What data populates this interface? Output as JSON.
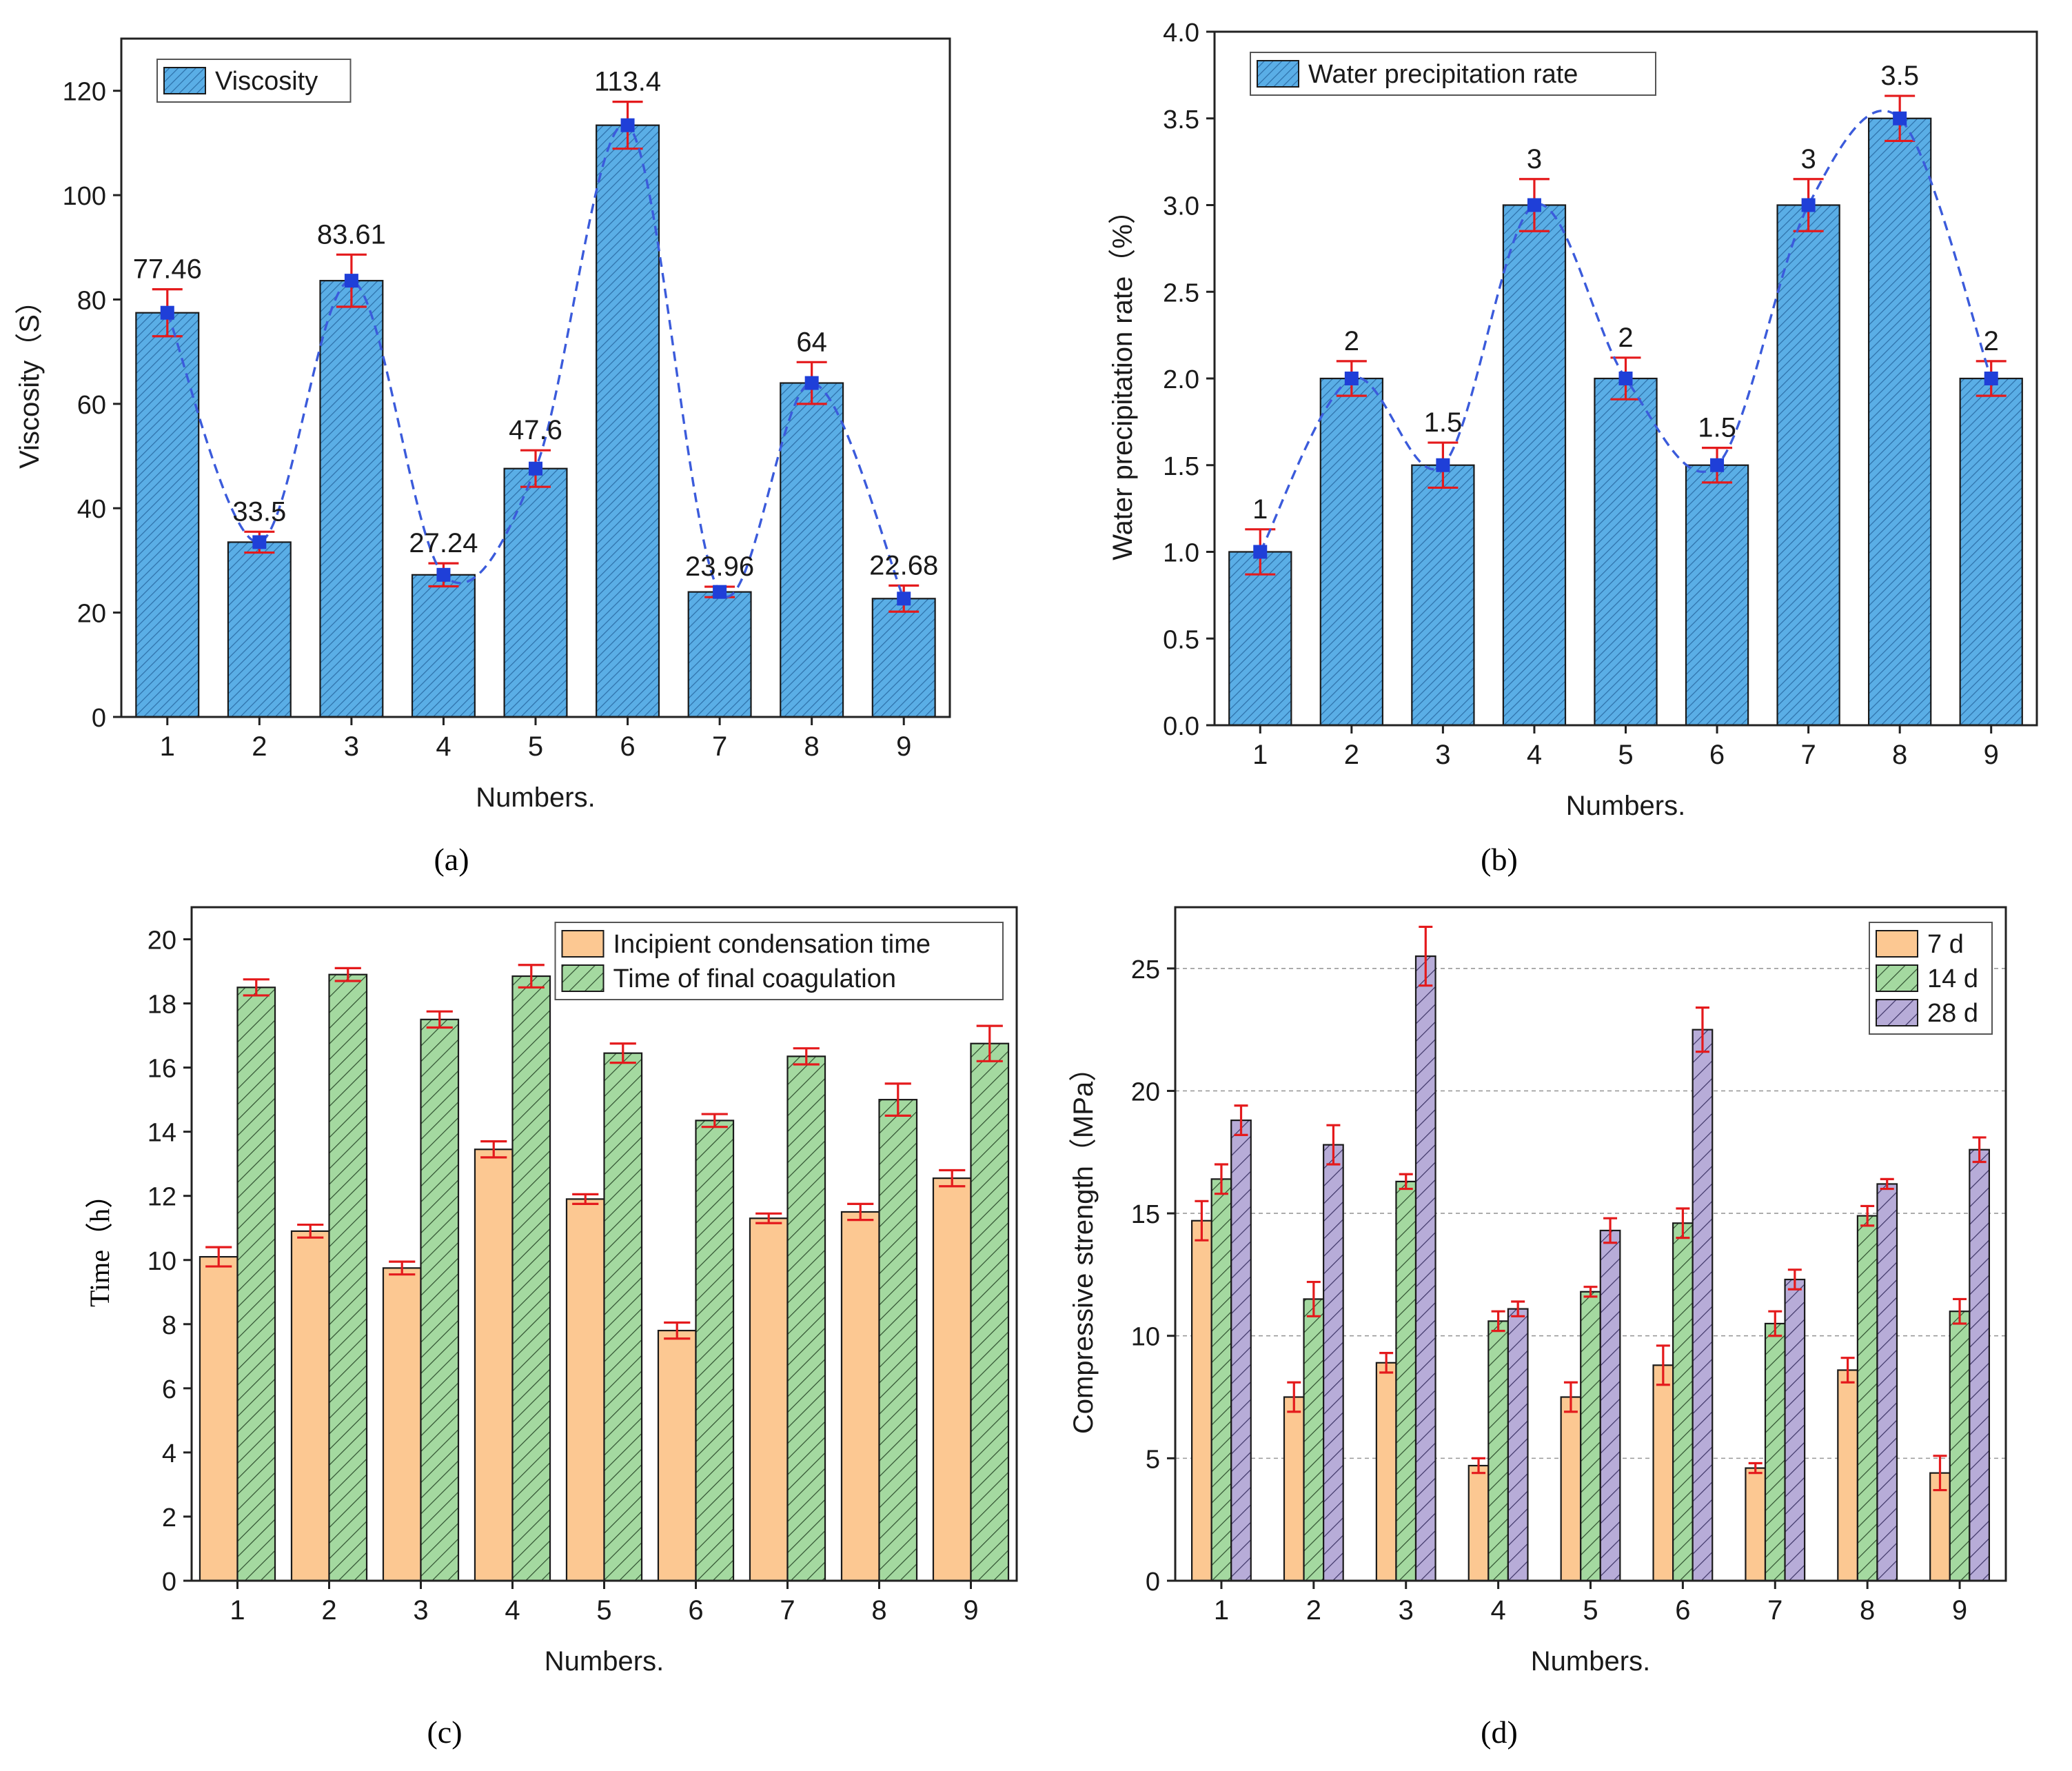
{
  "colors": {
    "blue_bar": "#5aaee6",
    "blue_hatch": "#2d6fa8",
    "orange_bar": "#fcc892",
    "green_bar": "#a4d9a0",
    "purple_bar": "#b7acd8",
    "error_red": "#e41a1c",
    "trend_blue": "#3b5bdb",
    "axis": "#222222"
  },
  "captions": [
    "(a)",
    "(b)",
    "(c)",
    "(d)"
  ],
  "chart_data": [
    {
      "id": "a",
      "type": "bar",
      "categories": [
        "1",
        "2",
        "3",
        "4",
        "5",
        "6",
        "7",
        "8",
        "9"
      ],
      "series": [
        {
          "name": "Viscosity",
          "values": [
            77.46,
            33.5,
            83.61,
            27.24,
            47.6,
            113.4,
            23.96,
            64,
            22.68
          ],
          "errors": [
            4.5,
            2.0,
            5.0,
            2.2,
            3.5,
            4.5,
            1.0,
            4.0,
            2.5
          ]
        }
      ],
      "data_labels": [
        "77.46",
        "33.5",
        "83.61",
        "27.24",
        "47.6",
        "113.4",
        "23.96",
        "64",
        "22.68"
      ],
      "trend_line": true,
      "xlabel": "Numbers.",
      "ylabel": "Viscosity（S）",
      "ylim": [
        0,
        130
      ],
      "yticks": [
        0,
        20,
        40,
        60,
        80,
        100,
        120
      ],
      "legend": "top-left",
      "caption": "(a)"
    },
    {
      "id": "b",
      "type": "bar",
      "categories": [
        "1",
        "2",
        "3",
        "4",
        "5",
        "6",
        "7",
        "8",
        "9"
      ],
      "series": [
        {
          "name": "Water precipitation rate",
          "values": [
            1,
            2,
            1.5,
            3,
            2,
            1.5,
            3,
            3.5,
            2
          ],
          "errors": [
            0.13,
            0.1,
            0.13,
            0.15,
            0.12,
            0.1,
            0.15,
            0.13,
            0.1
          ]
        }
      ],
      "data_labels": [
        "1",
        "2",
        "1.5",
        "3",
        "2",
        "1.5",
        "3",
        "3.5",
        "2"
      ],
      "trend_line": true,
      "xlabel": "Numbers.",
      "ylabel": "Water precipitation rate（%）",
      "ylim": [
        0,
        4.0
      ],
      "yticks": [
        "0.0",
        "0.5",
        "1.0",
        "1.5",
        "2.0",
        "2.5",
        "3.0",
        "3.5",
        "4.0"
      ],
      "legend": "top-left",
      "caption": "(b)"
    },
    {
      "id": "c",
      "type": "bar",
      "categories": [
        "1",
        "2",
        "3",
        "4",
        "5",
        "6",
        "7",
        "8",
        "9"
      ],
      "series": [
        {
          "name": "Incipient condensation time",
          "values": [
            10.1,
            10.9,
            9.75,
            13.45,
            11.9,
            7.8,
            11.3,
            11.5,
            12.55
          ],
          "errors": [
            0.3,
            0.2,
            0.2,
            0.25,
            0.15,
            0.25,
            0.15,
            0.25,
            0.25
          ]
        },
        {
          "name": "Time of final coagulation",
          "values": [
            18.5,
            18.9,
            17.5,
            18.85,
            16.45,
            14.35,
            16.35,
            15.0,
            16.75
          ],
          "errors": [
            0.25,
            0.2,
            0.25,
            0.35,
            0.3,
            0.2,
            0.25,
            0.5,
            0.55
          ]
        }
      ],
      "xlabel": "Numbers.",
      "ylabel": "Time（h）",
      "ylim": [
        0,
        21
      ],
      "yticks": [
        0,
        2,
        4,
        6,
        8,
        10,
        12,
        14,
        16,
        18,
        20
      ],
      "legend": "top-right",
      "caption": "(c)"
    },
    {
      "id": "d",
      "type": "bar",
      "categories": [
        "1",
        "2",
        "3",
        "4",
        "5",
        "6",
        "7",
        "8",
        "9"
      ],
      "series": [
        {
          "name": "7 d",
          "values": [
            14.7,
            7.5,
            8.9,
            4.7,
            7.5,
            8.8,
            4.6,
            8.6,
            4.4
          ],
          "errors": [
            0.8,
            0.6,
            0.4,
            0.3,
            0.6,
            0.8,
            0.2,
            0.5,
            0.7
          ]
        },
        {
          "name": "14 d",
          "values": [
            16.4,
            11.5,
            16.3,
            10.6,
            11.8,
            14.6,
            10.5,
            14.9,
            11.0
          ],
          "errors": [
            0.6,
            0.7,
            0.3,
            0.4,
            0.2,
            0.6,
            0.5,
            0.4,
            0.5
          ]
        },
        {
          "name": "28 d",
          "values": [
            18.8,
            17.8,
            25.5,
            11.1,
            14.3,
            22.5,
            12.3,
            16.2,
            17.6
          ],
          "errors": [
            0.6,
            0.8,
            1.2,
            0.3,
            0.5,
            0.9,
            0.4,
            0.2,
            0.5
          ]
        }
      ],
      "xlabel": "Numbers.",
      "ylabel": "Compressive strength（MPa）",
      "ylim": [
        0,
        27.5
      ],
      "yticks": [
        0,
        5,
        10,
        15,
        20,
        25
      ],
      "grid": true,
      "legend": "top-right",
      "caption": "(d)"
    }
  ]
}
